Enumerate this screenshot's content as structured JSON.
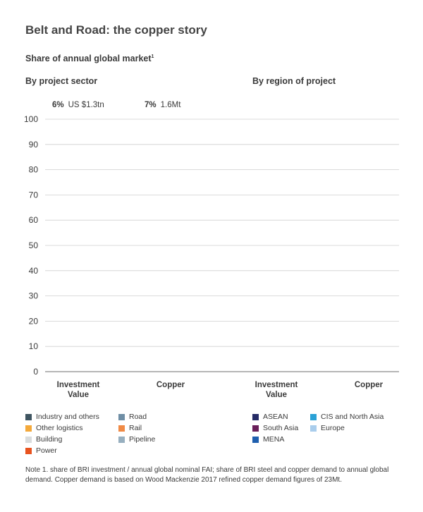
{
  "title": "Belt and Road: the copper story",
  "subtitle": "Share of annual global market",
  "subtitle_footnote_mark": "1",
  "sections": {
    "left": "By project sector",
    "right": "By region of project"
  },
  "annotations": [
    {
      "pct": "6%",
      "value": "US $1.3tn"
    },
    {
      "pct": "7%",
      "value": "1.6Mt"
    }
  ],
  "chart_data": {
    "type": "bar",
    "stacked": true,
    "ylim": [
      0,
      100
    ],
    "yticks": [
      0,
      10,
      20,
      30,
      40,
      50,
      60,
      70,
      80,
      90,
      100
    ],
    "grid": true,
    "panels": [
      {
        "name": "By project sector",
        "categories": [
          "Investment\nValue",
          "Copper"
        ]
      },
      {
        "name": "By region of project",
        "categories": [
          "Investment\nValue",
          "Copper"
        ]
      }
    ],
    "series_sector": [
      {
        "name": "Industry and others",
        "color": "#3f5561"
      },
      {
        "name": "Other logistics",
        "color": "#f4a93b"
      },
      {
        "name": "Building",
        "color": "#d9dcdd"
      },
      {
        "name": "Power",
        "color": "#e8531f"
      },
      {
        "name": "Road",
        "color": "#6f8ea5"
      },
      {
        "name": "Rail",
        "color": "#f08a45"
      },
      {
        "name": "Pipeline",
        "color": "#97afbf"
      }
    ],
    "series_region": [
      {
        "name": "ASEAN",
        "color": "#262b66"
      },
      {
        "name": "South Asia",
        "color": "#6a1f5a"
      },
      {
        "name": "MENA",
        "color": "#1f5fae"
      },
      {
        "name": "CIS and North Asia",
        "color": "#2aa1d6"
      },
      {
        "name": "Europe",
        "color": "#a9cdec"
      }
    ]
  },
  "note": "Note 1. share of BRI investment / annual global nominal FAI; share of BRI steel and copper demand to annual global demand. Copper demand is based on Wood Mackenzie 2017 refined copper demand figures of 23Mt."
}
